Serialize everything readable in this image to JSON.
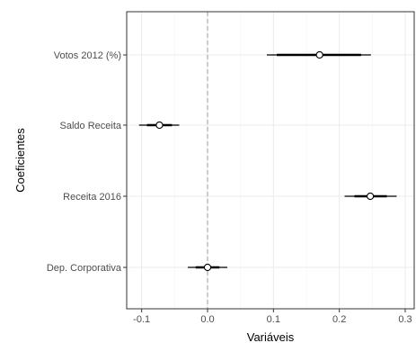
{
  "chart_data": {
    "type": "coefficient-plot",
    "xlabel": "Variáveis",
    "ylabel": "Coeficientes",
    "xlim": [
      -0.11,
      0.305
    ],
    "x_ticks": [
      {
        "value": -0.1,
        "label": "-0.1"
      },
      {
        "value": 0.0,
        "label": "0.0"
      },
      {
        "value": 0.1,
        "label": "0.1"
      },
      {
        "value": 0.2,
        "label": "0.2"
      },
      {
        "value": 0.3,
        "label": "0.3"
      }
    ],
    "reference_line": 0,
    "grid": true,
    "colors": {
      "grid": "#ebebeb",
      "border": "#333333",
      "estimate": "#000000",
      "point_fill": "#ffffff",
      "reference": "#999999"
    },
    "terms": [
      {
        "label": "Votos 2012 (%)",
        "estimate": 0.17,
        "inner": [
          0.105,
          0.233
        ],
        "outer": [
          0.09,
          0.248
        ]
      },
      {
        "label": "Saldo Receita",
        "estimate": -0.073,
        "inner": [
          -0.092,
          -0.054
        ],
        "outer": [
          -0.104,
          -0.043
        ]
      },
      {
        "label": "Receita 2016",
        "estimate": 0.247,
        "inner": [
          0.223,
          0.272
        ],
        "outer": [
          0.208,
          0.287
        ]
      },
      {
        "label": "Dep. Corporativa",
        "estimate": 0.0,
        "inner": [
          -0.018,
          0.018
        ],
        "outer": [
          -0.03,
          0.03
        ]
      }
    ]
  }
}
